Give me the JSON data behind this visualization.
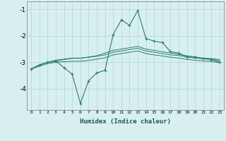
{
  "xlabel": "Humidex (Indice chaleur)",
  "x_values": [
    0,
    1,
    2,
    3,
    4,
    5,
    6,
    7,
    8,
    9,
    10,
    11,
    12,
    13,
    14,
    15,
    16,
    17,
    18,
    19,
    20,
    21,
    22,
    23
  ],
  "line1": [
    -3.25,
    -3.1,
    -3.0,
    -2.95,
    -3.2,
    -3.45,
    -4.55,
    -3.7,
    -3.4,
    -3.3,
    -1.95,
    -1.4,
    -1.6,
    -1.05,
    -2.1,
    -2.2,
    -2.25,
    -2.6,
    -2.65,
    -2.8,
    -2.8,
    -2.85,
    -2.9,
    -3.0
  ],
  "line2": [
    -3.25,
    -3.1,
    -3.0,
    -2.95,
    -2.9,
    -2.85,
    -2.85,
    -2.8,
    -2.75,
    -2.65,
    -2.55,
    -2.5,
    -2.45,
    -2.4,
    -2.5,
    -2.55,
    -2.6,
    -2.65,
    -2.7,
    -2.75,
    -2.8,
    -2.85,
    -2.85,
    -2.9
  ],
  "line3": [
    -3.25,
    -3.1,
    -3.0,
    -2.92,
    -2.88,
    -2.84,
    -2.84,
    -2.81,
    -2.77,
    -2.72,
    -2.62,
    -2.57,
    -2.52,
    -2.47,
    -2.57,
    -2.62,
    -2.67,
    -2.72,
    -2.74,
    -2.8,
    -2.84,
    -2.87,
    -2.89,
    -2.94
  ],
  "line4": [
    -3.25,
    -3.15,
    -3.05,
    -3.0,
    -2.98,
    -2.96,
    -2.96,
    -2.93,
    -2.88,
    -2.83,
    -2.72,
    -2.67,
    -2.62,
    -2.57,
    -2.67,
    -2.72,
    -2.76,
    -2.81,
    -2.84,
    -2.89,
    -2.92,
    -2.95,
    -2.97,
    -3.02
  ],
  "color": "#2a7a72",
  "bg_color": "#d7f0ef",
  "grid_color": "#b8d8d6",
  "ylim": [
    -4.8,
    -0.7
  ],
  "yticks": [
    -4,
    -3,
    -2,
    -1
  ],
  "figsize": [
    3.2,
    2.0
  ],
  "dpi": 100
}
